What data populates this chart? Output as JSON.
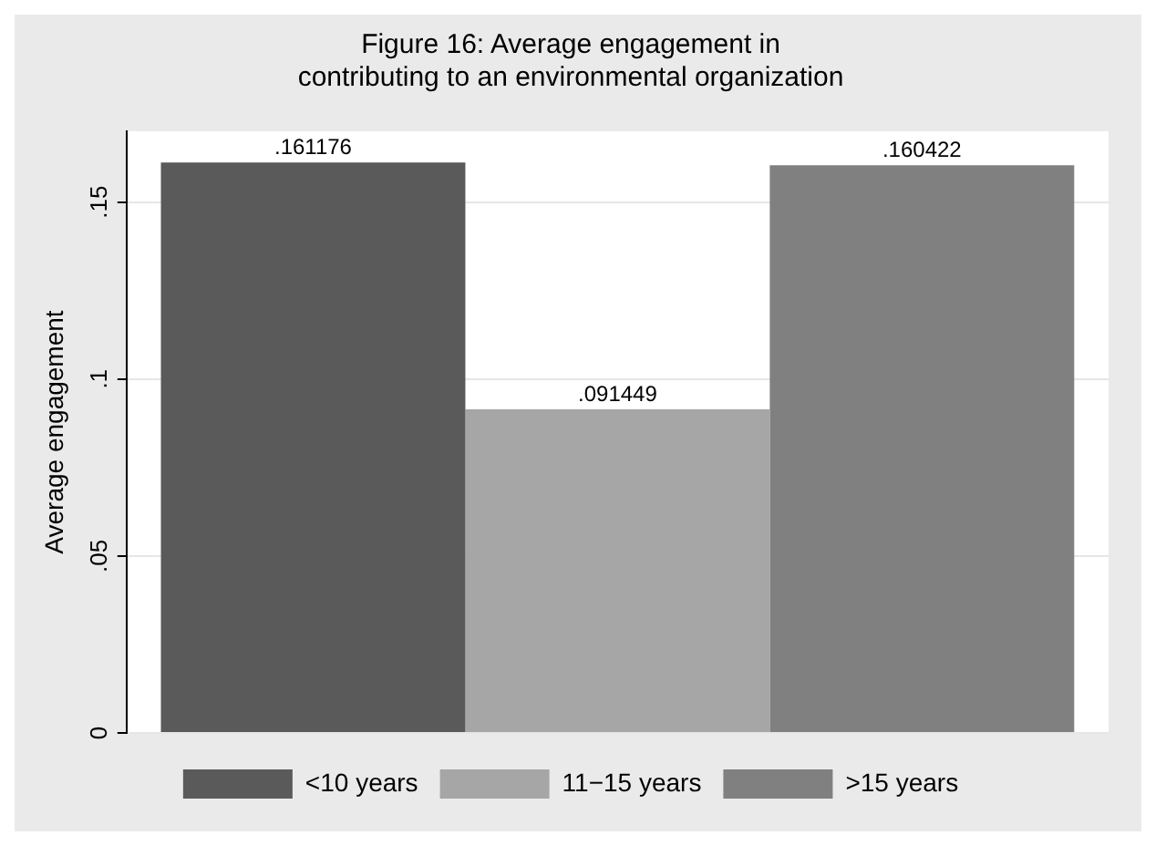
{
  "chart_data": {
    "type": "bar",
    "title": "Figure 16: Average engagement in\ncontributing to an environmental organization",
    "ylabel": "Average engagement",
    "categories": [
      null
    ],
    "series": [
      {
        "name": "<10 years",
        "color": "#5a5a5a",
        "values": [
          0.161176
        ],
        "value_labels": [
          ".161176"
        ]
      },
      {
        "name": "11−15 years",
        "color": "#a6a6a6",
        "values": [
          0.091449
        ],
        "value_labels": [
          ".091449"
        ]
      },
      {
        "name": ">15 years",
        "color": "#808080",
        "values": [
          0.160422
        ],
        "value_labels": [
          ".160422"
        ]
      }
    ],
    "ylim": [
      0,
      0.17
    ],
    "yticks": [
      {
        "value": 0,
        "label": "0"
      },
      {
        "value": 0.05,
        "label": ".05"
      },
      {
        "value": 0.1,
        "label": ".1"
      },
      {
        "value": 0.15,
        "label": ".15"
      }
    ],
    "grid": "y",
    "legend": "bottom"
  }
}
